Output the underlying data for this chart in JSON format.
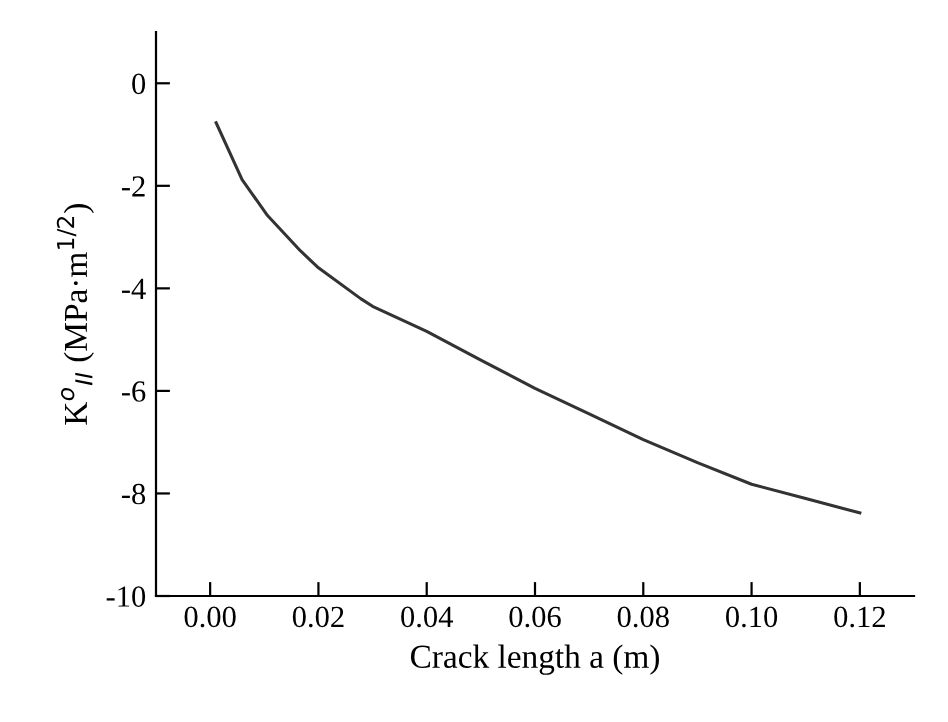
{
  "chart_data": {
    "type": "line",
    "xlabel": "Crack length a (m)",
    "ylabel": "K$^{o}$$_{II}$ (MPa·m$^{1/2}$)",
    "x": [
      0.0011,
      0.0059,
      0.0106,
      0.0167,
      0.02,
      0.0278,
      0.03,
      0.04,
      0.05,
      0.06,
      0.07,
      0.08,
      0.09,
      0.1,
      0.11,
      0.12
    ],
    "series": [
      {
        "color": "#333333",
        "values": [
          -0.77,
          -1.88,
          -2.58,
          -3.27,
          -3.6,
          -4.2,
          -4.35,
          -4.84,
          -5.4,
          -5.95,
          -6.45,
          -6.95,
          -7.4,
          -7.82,
          -8.1,
          -8.38
        ]
      }
    ],
    "xlim": [
      -0.01,
      0.13
    ],
    "ylim": [
      -10,
      1
    ],
    "xticks": [
      {
        "value": 0,
        "label": "0.00"
      },
      0.02,
      0.04,
      0.06,
      0.08,
      {
        "value": 0.1,
        "label": "0.10"
      },
      0.12
    ],
    "yticks": [
      -10,
      -8,
      -6,
      -4,
      -2,
      0
    ],
    "grid": false,
    "marker": "none",
    "line_style": "solid"
  }
}
